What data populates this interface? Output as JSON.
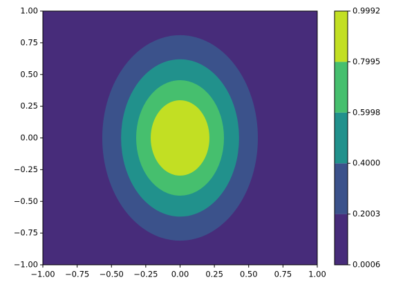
{
  "chart_data": {
    "type": "contour",
    "xlim": [
      -1,
      1
    ],
    "ylim": [
      -1,
      1
    ],
    "xticks": [
      {
        "value": -1,
        "label": "−1.00"
      },
      {
        "value": -0.75,
        "label": "−0.75"
      },
      {
        "value": -0.5,
        "label": "−0.50"
      },
      {
        "value": -0.25,
        "label": "−0.25"
      },
      {
        "value": 0,
        "label": "0.00"
      },
      {
        "value": 0.25,
        "label": "0.25"
      },
      {
        "value": 0.5,
        "label": "0.50"
      },
      {
        "value": 0.75,
        "label": "0.75"
      },
      {
        "value": 1,
        "label": "1.00"
      }
    ],
    "yticks": [
      {
        "value": -1,
        "label": "−1.00"
      },
      {
        "value": -0.75,
        "label": "−0.75"
      },
      {
        "value": -0.5,
        "label": "−0.50"
      },
      {
        "value": -0.25,
        "label": "−0.25"
      },
      {
        "value": 0,
        "label": "0.00"
      },
      {
        "value": 0.25,
        "label": "0.25"
      },
      {
        "value": 0.5,
        "label": "0.50"
      },
      {
        "value": 0.75,
        "label": "0.75"
      },
      {
        "value": 1,
        "label": "1.00"
      }
    ],
    "levels": [
      0.0006,
      0.2003,
      {
        "value": 0.4,
        "label": "0.4000"
      },
      0.5998,
      0.7995,
      0.9992
    ],
    "colors": [
      "#472c7a",
      "#3b528b",
      "#21918c",
      "#46bf6e",
      "#c2df23"
    ],
    "contours": [
      {
        "rx": 0.567,
        "ry": 0.81
      },
      {
        "rx": 0.43,
        "ry": 0.62
      },
      {
        "rx": 0.32,
        "ry": 0.455
      },
      {
        "rx": 0.214,
        "ry": 0.297
      }
    ]
  }
}
